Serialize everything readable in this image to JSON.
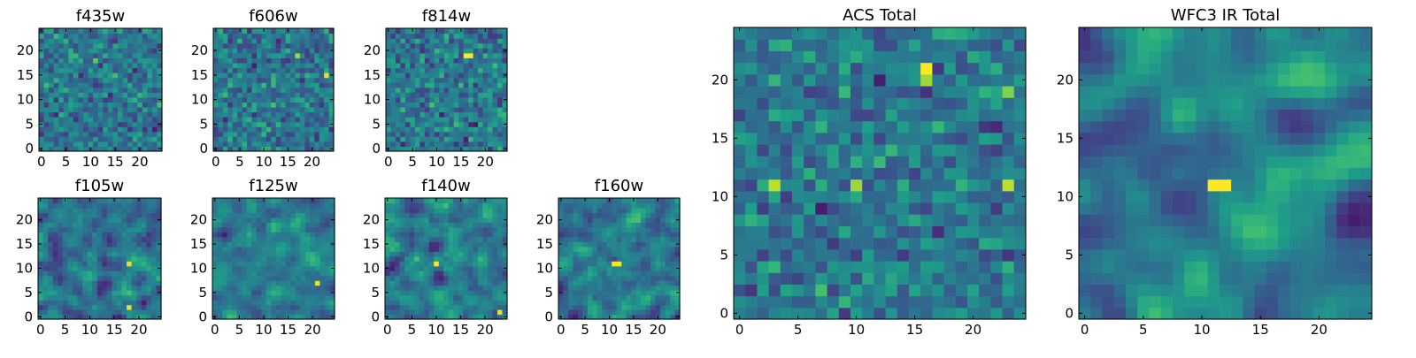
{
  "chart_data": [
    {
      "type": "heatmap",
      "title": "f435w",
      "xticks": [
        "0",
        "5",
        "10",
        "15",
        "20"
      ],
      "yticks": [
        "0",
        "5",
        "10",
        "15",
        "20"
      ],
      "xlim": [
        0,
        25
      ],
      "ylim": [
        0,
        25
      ],
      "grid_size": 25,
      "colormap": "viridis",
      "seed": 11,
      "smooth": 0,
      "bright": [
        [
          18,
          11,
          0.75
        ]
      ]
    },
    {
      "type": "heatmap",
      "title": "f606w",
      "xticks": [
        "0",
        "5",
        "10",
        "15",
        "20"
      ],
      "yticks": [
        "0",
        "5",
        "10",
        "15",
        "20"
      ],
      "xlim": [
        0,
        25
      ],
      "ylim": [
        0,
        25
      ],
      "grid_size": 25,
      "colormap": "viridis",
      "seed": 23,
      "smooth": 0,
      "bright": [
        [
          15,
          23,
          0.95
        ],
        [
          19,
          17,
          0.85
        ]
      ]
    },
    {
      "type": "heatmap",
      "title": "f814w",
      "xticks": [
        "0",
        "5",
        "10",
        "15",
        "20"
      ],
      "yticks": [
        "0",
        "5",
        "10",
        "15",
        "20"
      ],
      "xlim": [
        0,
        25
      ],
      "ylim": [
        0,
        25
      ],
      "grid_size": 25,
      "colormap": "viridis",
      "seed": 37,
      "smooth": 0,
      "bright": [
        [
          19,
          16,
          1.0
        ],
        [
          19,
          17,
          1.0
        ]
      ]
    },
    {
      "type": "heatmap",
      "title": "f105w",
      "xticks": [
        "0",
        "5",
        "10",
        "15",
        "20"
      ],
      "yticks": [
        "0",
        "5",
        "10",
        "15",
        "20"
      ],
      "xlim": [
        0,
        25
      ],
      "ylim": [
        0,
        25
      ],
      "grid_size": 25,
      "colormap": "viridis",
      "seed": 41,
      "smooth": 1,
      "bright": [
        [
          11,
          18,
          0.95
        ],
        [
          2,
          18,
          0.95
        ]
      ]
    },
    {
      "type": "heatmap",
      "title": "f125w",
      "xticks": [
        "0",
        "5",
        "10",
        "15",
        "20"
      ],
      "yticks": [
        "0",
        "5",
        "10",
        "15",
        "20"
      ],
      "xlim": [
        0,
        25
      ],
      "ylim": [
        0,
        25
      ],
      "grid_size": 25,
      "colormap": "viridis",
      "seed": 53,
      "smooth": 1,
      "bright": [
        [
          7,
          21,
          0.95
        ]
      ]
    },
    {
      "type": "heatmap",
      "title": "f140w",
      "xticks": [
        "0",
        "5",
        "10",
        "15",
        "20"
      ],
      "yticks": [
        "0",
        "5",
        "10",
        "15",
        "20"
      ],
      "xlim": [
        0,
        25
      ],
      "ylim": [
        0,
        25
      ],
      "grid_size": 25,
      "colormap": "viridis",
      "seed": 67,
      "smooth": 1,
      "bright": [
        [
          11,
          10,
          1.0
        ],
        [
          1,
          23,
          0.95
        ]
      ]
    },
    {
      "type": "heatmap",
      "title": "f160w",
      "xticks": [
        "0",
        "5",
        "10",
        "15",
        "20"
      ],
      "yticks": [
        "0",
        "5",
        "10",
        "15",
        "20"
      ],
      "xlim": [
        0,
        25
      ],
      "ylim": [
        0,
        25
      ],
      "grid_size": 25,
      "colormap": "viridis",
      "seed": 79,
      "smooth": 1,
      "bright": [
        [
          11,
          11,
          1.0
        ],
        [
          11,
          12,
          1.0
        ]
      ]
    },
    {
      "type": "heatmap",
      "title": "ACS Total",
      "xticks": [
        "0",
        "5",
        "10",
        "15",
        "20"
      ],
      "yticks": [
        "0",
        "5",
        "10",
        "15",
        "20"
      ],
      "xlim": [
        0,
        25
      ],
      "ylim": [
        0,
        25
      ],
      "grid_size": 25,
      "colormap": "viridis",
      "seed": 97,
      "smooth": 0,
      "bright": [
        [
          21,
          16,
          1.0
        ],
        [
          20,
          16,
          0.85
        ],
        [
          11,
          3,
          0.9
        ],
        [
          11,
          10,
          0.85
        ],
        [
          11,
          23,
          0.9
        ],
        [
          19,
          23,
          0.8
        ]
      ]
    },
    {
      "type": "heatmap",
      "title": "WFC3 IR Total",
      "xticks": [
        "0",
        "5",
        "10",
        "15",
        "20"
      ],
      "yticks": [
        "0",
        "5",
        "10",
        "15",
        "20"
      ],
      "xlim": [
        0,
        25
      ],
      "ylim": [
        0,
        25
      ],
      "grid_size": 25,
      "colormap": "viridis",
      "seed": 103,
      "smooth": 2,
      "bright": [
        [
          11,
          11,
          1.0
        ],
        [
          11,
          12,
          1.0
        ]
      ]
    }
  ]
}
